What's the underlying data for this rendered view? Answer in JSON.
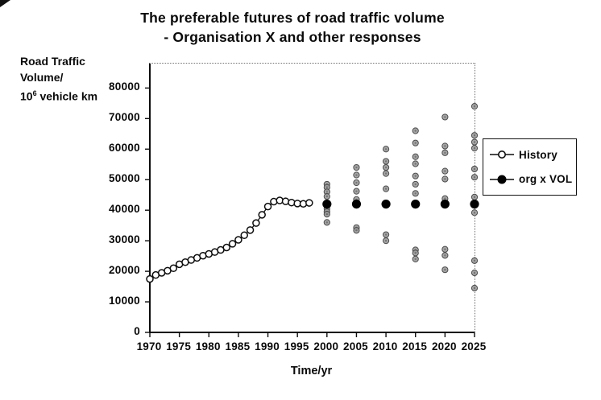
{
  "title": {
    "line1": "The preferable futures of road traffic volume",
    "line2": "- Organisation X and other responses"
  },
  "y_axis": {
    "label_line1": "Road Traffic",
    "label_line2": "Volume/",
    "unit_base": "10",
    "unit_sup": "6",
    "unit_rest": " vehicle km",
    "ticks": [
      0,
      10000,
      20000,
      30000,
      40000,
      50000,
      60000,
      70000,
      80000
    ]
  },
  "x_axis": {
    "title": "Time/yr",
    "ticks": [
      1970,
      1975,
      1980,
      1985,
      1990,
      1995,
      2000,
      2005,
      2010,
      2015,
      2020,
      2025
    ]
  },
  "legend": {
    "items": [
      {
        "label": "History",
        "marker": "open-circle"
      },
      {
        "label": "org x VOL",
        "marker": "filled-circle"
      }
    ]
  },
  "colors": {
    "line": "#0d0d0d",
    "history_marker_fill": "#ffffff",
    "org_marker_fill": "#000000",
    "response_fill": "#9b9b9b",
    "response_stroke": "#4c4c4c",
    "axis": "#0d0d0d"
  },
  "chart_data": {
    "type": "scatter",
    "title": "The preferable futures of road traffic volume - Organisation X and other responses",
    "xlabel": "Time/yr",
    "ylabel": "Road Traffic Volume/ 10^6 vehicle km",
    "xlim": [
      1970,
      2025
    ],
    "ylim": [
      0,
      88000
    ],
    "grid": false,
    "legend_position": "right",
    "series": [
      {
        "name": "History",
        "type": "line",
        "marker": "open-circle",
        "x": [
          1970,
          1971,
          1972,
          1973,
          1974,
          1975,
          1976,
          1977,
          1978,
          1979,
          1980,
          1981,
          1982,
          1983,
          1984,
          1985,
          1986,
          1987,
          1988,
          1989,
          1990,
          1991,
          1992,
          1993,
          1994,
          1995,
          1996,
          1997
        ],
        "y": [
          17500,
          18800,
          19500,
          20200,
          21000,
          22300,
          23000,
          23700,
          24400,
          25100,
          25700,
          26300,
          27000,
          27800,
          29000,
          30300,
          31800,
          33500,
          35800,
          38500,
          41200,
          42800,
          43200,
          42900,
          42500,
          42200,
          42100,
          42400
        ]
      },
      {
        "name": "org x VOL",
        "type": "scatter",
        "marker": "filled-circle",
        "x": [
          2000,
          2005,
          2010,
          2015,
          2020,
          2025
        ],
        "y": [
          42000,
          42000,
          42000,
          42000,
          42000,
          42000
        ]
      },
      {
        "name": "other responses",
        "type": "scatter",
        "marker": "gray-circle",
        "points": [
          [
            2000,
            48500
          ],
          [
            2000,
            47500
          ],
          [
            2000,
            46000
          ],
          [
            2000,
            44500
          ],
          [
            2000,
            40500
          ],
          [
            2000,
            39500
          ],
          [
            2000,
            38700
          ],
          [
            2000,
            36000
          ],
          [
            2005,
            54000
          ],
          [
            2005,
            51500
          ],
          [
            2005,
            49000
          ],
          [
            2005,
            46200
          ],
          [
            2005,
            43500
          ],
          [
            2005,
            34300
          ],
          [
            2005,
            33400
          ],
          [
            2010,
            60000
          ],
          [
            2010,
            56000
          ],
          [
            2010,
            54000
          ],
          [
            2010,
            52000
          ],
          [
            2010,
            47000
          ],
          [
            2010,
            32000
          ],
          [
            2010,
            30000
          ],
          [
            2015,
            66000
          ],
          [
            2015,
            62000
          ],
          [
            2015,
            57500
          ],
          [
            2015,
            55200
          ],
          [
            2015,
            51200
          ],
          [
            2015,
            48500
          ],
          [
            2015,
            45500
          ],
          [
            2015,
            27000
          ],
          [
            2015,
            26000
          ],
          [
            2015,
            24000
          ],
          [
            2020,
            70500
          ],
          [
            2020,
            61000
          ],
          [
            2020,
            58800
          ],
          [
            2020,
            52800
          ],
          [
            2020,
            50200
          ],
          [
            2020,
            43800
          ],
          [
            2020,
            27200
          ],
          [
            2020,
            25200
          ],
          [
            2020,
            20500
          ],
          [
            2025,
            74000
          ],
          [
            2025,
            64500
          ],
          [
            2025,
            62300
          ],
          [
            2025,
            60300
          ],
          [
            2025,
            53500
          ],
          [
            2025,
            50800
          ],
          [
            2025,
            44300
          ],
          [
            2025,
            39200
          ],
          [
            2025,
            23500
          ],
          [
            2025,
            19500
          ],
          [
            2025,
            14500
          ]
        ]
      }
    ]
  }
}
